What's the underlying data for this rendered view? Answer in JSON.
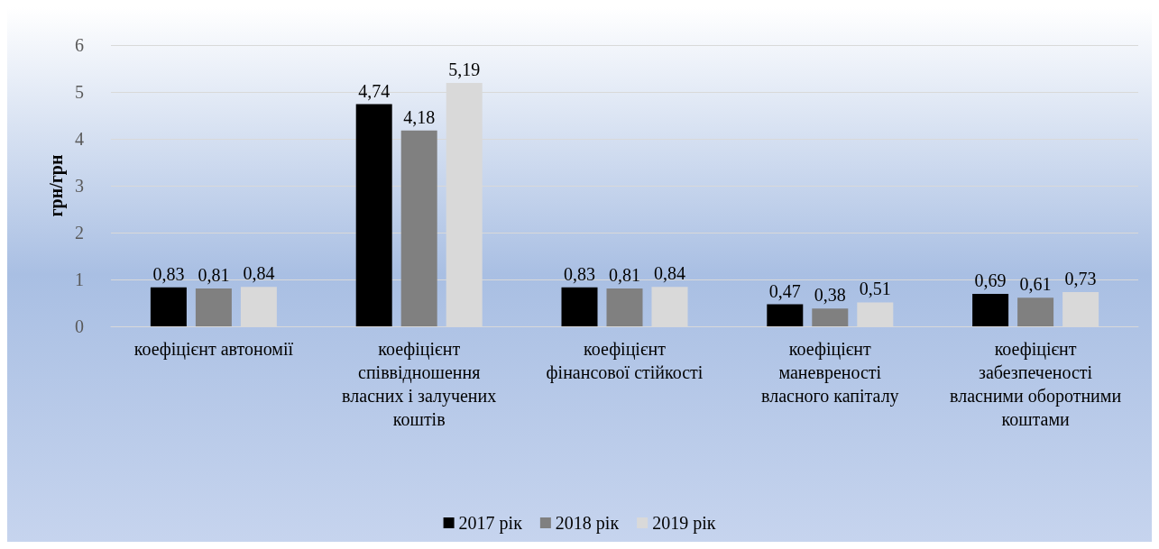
{
  "chart_data": {
    "type": "bar",
    "ylabel": "грн/грн",
    "categories": [
      "коефіцієнт автономії",
      "коефіцієнт співвідношення власних і залучених коштів",
      "коефіцієнт фінансової стійкості",
      "коефіцієнт маневреності власного капіталу",
      "коефіцієнт забезпеченості власними оборотними коштами"
    ],
    "series": [
      {
        "name": "2017 рік",
        "color": "#000000",
        "values": [
          0.83,
          4.74,
          0.83,
          0.47,
          0.69
        ],
        "value_labels": [
          "0,83",
          "4,74",
          "0,83",
          "0,47",
          "0,69"
        ]
      },
      {
        "name": "2018 рік",
        "color": "#808080",
        "values": [
          0.81,
          4.18,
          0.81,
          0.38,
          0.61
        ],
        "value_labels": [
          "0,81",
          "4,18",
          "0,81",
          "0,38",
          "0,61"
        ]
      },
      {
        "name": "2019 рік",
        "color": "#d9d9d9",
        "values": [
          0.84,
          5.19,
          0.84,
          0.51,
          0.73
        ],
        "value_labels": [
          "0,84",
          "5,19",
          "0,84",
          "0,51",
          "0,73"
        ]
      }
    ],
    "ylim": [
      0,
      6
    ],
    "yticks": [
      0,
      1,
      2,
      3,
      4,
      5,
      6
    ],
    "grid": "y",
    "legend": "bottom"
  }
}
